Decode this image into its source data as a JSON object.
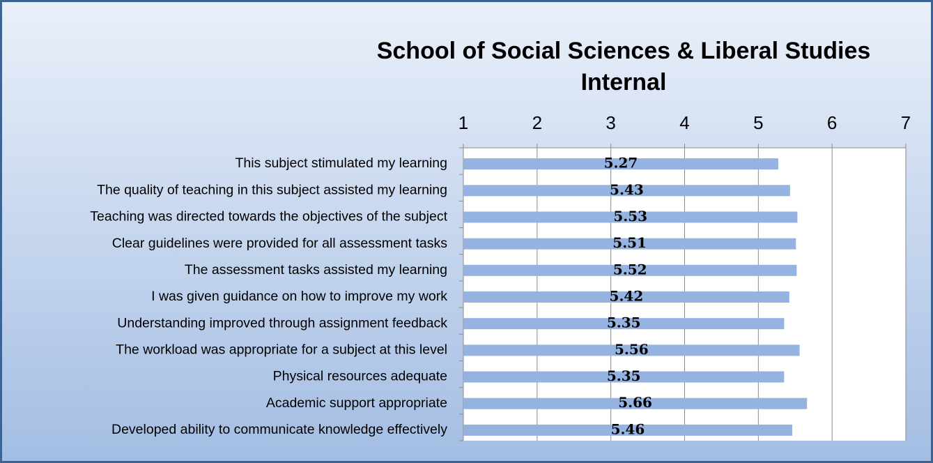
{
  "chart_data": {
    "type": "hbar",
    "title": "School of Social Sciences & Liberal Studies",
    "subtitle": "Internal",
    "categories": [
      "This subject stimulated my learning",
      "The quality of teaching in this subject assisted my learning",
      "Teaching was directed towards the objectives of the subject",
      "Clear guidelines were provided for all assessment tasks",
      "The assessment tasks assisted my learning",
      "I was given guidance on how to improve my work",
      "Understanding improved through assignment feedback",
      "The workload was appropriate for a subject at this level",
      "Physical resources adequate",
      "Academic support appropriate",
      "Developed ability to communicate knowledge effectively"
    ],
    "values": [
      5.27,
      5.43,
      5.53,
      5.51,
      5.52,
      5.42,
      5.35,
      5.56,
      5.35,
      5.66,
      5.46
    ],
    "color": "#95b3e0",
    "xlim": [
      1,
      7
    ],
    "xticks": [
      1,
      2,
      3,
      4,
      5,
      6,
      7
    ],
    "grid": true
  }
}
